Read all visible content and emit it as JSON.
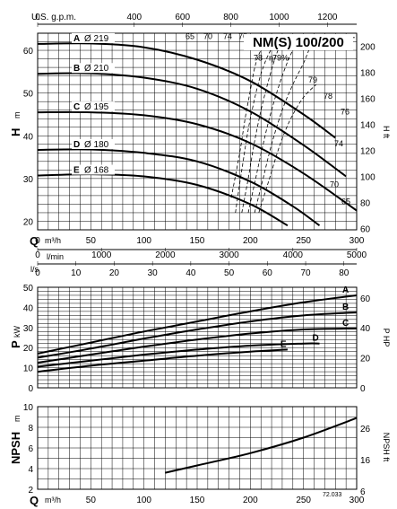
{
  "title": "NM(S) 100/200",
  "ref_code": "72.033",
  "axis_labels": {
    "usgpm": "U.S. g.p.m.",
    "lmin": "l/min",
    "ls": "l/s",
    "q_symbol": "Q",
    "q_unit": "m³/h",
    "h_symbol": "H",
    "h_unit": "m",
    "hft": "H ft",
    "p_symbol": "P",
    "p_unit": "kW",
    "php": "P HP",
    "npsh_symbol": "NPSH",
    "npsh_unit": "m",
    "npshft": "NPSH ft"
  },
  "chart_data": [
    {
      "type": "line",
      "name": "head",
      "title": "NM(S) 100/200",
      "xlabel": "Q m³/h",
      "ylabel": "H m",
      "xlim": [
        0,
        300
      ],
      "ylim": [
        18,
        64
      ],
      "x_ticks": [
        0,
        50,
        100,
        150,
        200,
        250,
        300
      ],
      "y_ticks": [
        20,
        30,
        40,
        50,
        60
      ],
      "y2_label": "H ft",
      "y2_ticks": [
        60,
        80,
        100,
        120,
        140,
        160,
        180,
        200
      ],
      "usgpm_ticks": [
        0,
        400,
        600,
        800,
        1000,
        1200
      ],
      "lmin_ticks": [
        0,
        1000,
        2000,
        3000,
        4000,
        5000
      ],
      "ls_ticks": [
        0,
        10,
        20,
        30,
        40,
        50,
        60,
        70,
        80
      ],
      "grid": true,
      "series": [
        {
          "name": "A",
          "diameter": "Ø 219",
          "x": [
            0,
            50,
            100,
            150,
            200,
            250,
            280
          ],
          "y": [
            61.5,
            61.6,
            60.7,
            57.8,
            52.8,
            45.0,
            39.5
          ]
        },
        {
          "name": "B",
          "diameter": "Ø 210",
          "x": [
            0,
            50,
            100,
            150,
            200,
            250,
            290
          ],
          "y": [
            54.5,
            54.6,
            53.6,
            51.0,
            45.7,
            37.8,
            30.5
          ]
        },
        {
          "name": "C",
          "diameter": "Ø 195",
          "x": [
            0,
            50,
            100,
            150,
            200,
            250,
            300
          ],
          "y": [
            45.5,
            45.5,
            44.8,
            42.7,
            38.3,
            31.2,
            22.5
          ]
        },
        {
          "name": "D",
          "diameter": "Ø 180",
          "x": [
            0,
            50,
            100,
            150,
            200,
            240,
            265
          ],
          "y": [
            36.7,
            36.8,
            36.0,
            34.0,
            29.3,
            23.5,
            19.0
          ]
        },
        {
          "name": "E",
          "diameter": "Ø 168",
          "x": [
            0,
            50,
            100,
            150,
            200,
            235
          ],
          "y": [
            30.7,
            31.0,
            30.5,
            28.5,
            24.0,
            19.0
          ]
        }
      ],
      "efficiency_curves": [
        {
          "label": "65",
          "x": [
            182,
            190,
            198,
            210,
            235,
            262,
            290,
            300
          ],
          "y": [
            25.5,
            36,
            48,
            60,
            63,
            63,
            63,
            63
          ]
        },
        {
          "label": "70",
          "x": [
            186,
            192,
            200,
            212,
            227,
            237,
            245
          ],
          "y": [
            22,
            32,
            44,
            56,
            63,
            63,
            63
          ]
        },
        {
          "label": "74",
          "x": [
            192,
            198,
            205,
            214,
            226,
            236,
            246,
            255
          ],
          "y": [
            22,
            30,
            40,
            50,
            60,
            63,
            63,
            63
          ]
        },
        {
          "label": "76",
          "x": [
            198,
            205,
            212,
            220,
            230,
            240,
            250,
            258
          ],
          "y": [
            22,
            30,
            38,
            46,
            54,
            60,
            63,
            63
          ]
        },
        {
          "label": "78",
          "x": [
            204,
            212,
            220,
            230,
            240,
            250,
            255,
            260
          ],
          "y": [
            22,
            30,
            38,
            46,
            52,
            57,
            60,
            63
          ]
        },
        {
          "label": "79%",
          "x": [
            208,
            218,
            228,
            238,
            250,
            262
          ],
          "y": [
            22,
            30,
            38,
            44,
            49,
            52
          ]
        }
      ],
      "efficiency_symbol": "η"
    },
    {
      "type": "line",
      "name": "power",
      "xlabel": "Q m³/h",
      "ylabel": "P kW",
      "xlim": [
        0,
        300
      ],
      "ylim": [
        0,
        50
      ],
      "y_ticks": [
        0,
        10,
        20,
        30,
        40,
        50
      ],
      "y2_label": "P HP",
      "y2_ticks": [
        0,
        20,
        40,
        60
      ],
      "grid": true,
      "series": [
        {
          "name": "A",
          "x": [
            0,
            50,
            100,
            150,
            200,
            250,
            300
          ],
          "y": [
            17,
            22.5,
            28,
            33,
            38,
            42.5,
            46
          ]
        },
        {
          "name": "B",
          "x": [
            0,
            50,
            100,
            150,
            200,
            250,
            300
          ],
          "y": [
            15,
            19.5,
            24.5,
            29,
            33,
            36,
            37.5
          ]
        },
        {
          "name": "C",
          "x": [
            0,
            50,
            100,
            150,
            200,
            250,
            300
          ],
          "y": [
            12.5,
            16.5,
            20.5,
            24,
            27,
            29,
            29.5
          ]
        },
        {
          "name": "D",
          "x": [
            0,
            50,
            100,
            150,
            200,
            250,
            265
          ],
          "y": [
            10.5,
            13.5,
            16.5,
            19,
            21,
            22,
            22
          ]
        },
        {
          "name": "E",
          "x": [
            0,
            50,
            100,
            150,
            200,
            235
          ],
          "y": [
            8,
            11,
            13.5,
            16,
            18,
            19
          ]
        }
      ]
    },
    {
      "type": "line",
      "name": "npsh",
      "xlabel": "Q m³/h",
      "ylabel": "NPSH m",
      "xlim": [
        0,
        300
      ],
      "ylim": [
        2,
        10
      ],
      "x_ticks": [
        0,
        50,
        100,
        150,
        200,
        250,
        300
      ],
      "y_ticks": [
        2,
        4,
        6,
        8,
        10
      ],
      "y2_label": "NPSH ft",
      "y2_ticks": [
        6,
        16,
        26
      ],
      "grid": true,
      "series": [
        {
          "name": "NPSH",
          "x": [
            120,
            150,
            200,
            250,
            300
          ],
          "y": [
            3.6,
            4.3,
            5.5,
            7.0,
            8.9
          ]
        }
      ]
    }
  ]
}
